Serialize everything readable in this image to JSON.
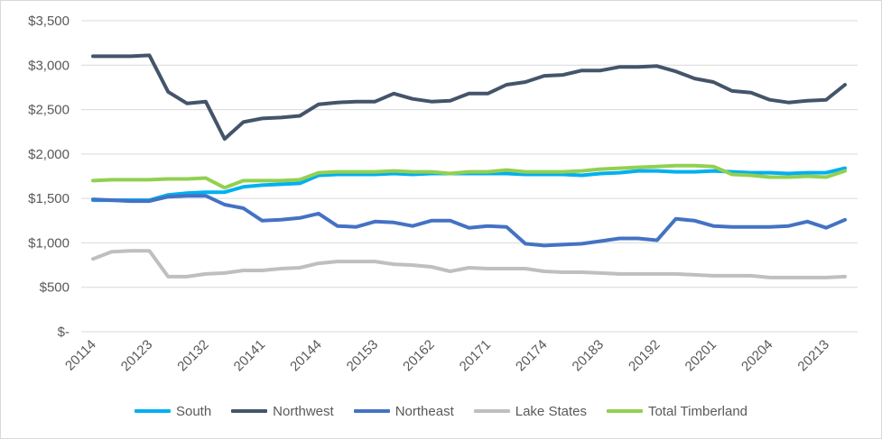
{
  "chart_data": {
    "type": "line",
    "title": "",
    "xlabel": "",
    "ylabel": "",
    "ylim": [
      0,
      3500
    ],
    "y_ticks": [
      {
        "value": 0,
        "label": "$-"
      },
      {
        "value": 500,
        "label": "$500"
      },
      {
        "value": 1000,
        "label": "$1,000"
      },
      {
        "value": 1500,
        "label": "$1,500"
      },
      {
        "value": 2000,
        "label": "$2,000"
      },
      {
        "value": 2500,
        "label": "$2,500"
      },
      {
        "value": 3000,
        "label": "$3,000"
      },
      {
        "value": 3500,
        "label": "$3,500"
      }
    ],
    "grid": "horizontal",
    "legend_position": "bottom",
    "x": [
      "20114",
      "20121",
      "20122",
      "20123",
      "20124",
      "20131",
      "20132",
      "20133",
      "20134",
      "20141",
      "20142",
      "20143",
      "20144",
      "20151",
      "20152",
      "20153",
      "20154",
      "20161",
      "20162",
      "20163",
      "20164",
      "20171",
      "20172",
      "20173",
      "20174",
      "20181",
      "20182",
      "20183",
      "20184",
      "20191",
      "20192",
      "20193",
      "20194",
      "20201",
      "20202",
      "20203",
      "20204",
      "20211",
      "20212",
      "20213",
      "20214"
    ],
    "x_tick_labels": [
      "20114",
      "20123",
      "20132",
      "20141",
      "20144",
      "20153",
      "20162",
      "20171",
      "20174",
      "20183",
      "20192",
      "20201",
      "20204",
      "20213"
    ],
    "series": [
      {
        "name": "South",
        "color": "#00b0f0",
        "values": [
          1480,
          1480,
          1480,
          1480,
          1540,
          1560,
          1570,
          1570,
          1630,
          1650,
          1660,
          1670,
          1760,
          1770,
          1770,
          1770,
          1780,
          1770,
          1780,
          1780,
          1780,
          1780,
          1780,
          1770,
          1770,
          1770,
          1760,
          1780,
          1790,
          1810,
          1810,
          1800,
          1800,
          1810,
          1800,
          1790,
          1790,
          1780,
          1790,
          1790,
          1840
        ]
      },
      {
        "name": "Northwest",
        "color": "#44546a",
        "values": [
          3100,
          3100,
          3100,
          3110,
          2700,
          2570,
          2590,
          2170,
          2360,
          2400,
          2410,
          2430,
          2560,
          2580,
          2590,
          2590,
          2680,
          2620,
          2590,
          2600,
          2680,
          2680,
          2780,
          2810,
          2880,
          2890,
          2940,
          2940,
          2980,
          2980,
          2990,
          2930,
          2850,
          2810,
          2710,
          2690,
          2610,
          2580,
          2600,
          2610,
          2780
        ]
      },
      {
        "name": "Northeast",
        "color": "#4472c4",
        "values": [
          1490,
          1480,
          1470,
          1470,
          1520,
          1530,
          1530,
          1430,
          1390,
          1250,
          1260,
          1280,
          1330,
          1190,
          1180,
          1240,
          1230,
          1190,
          1250,
          1250,
          1170,
          1190,
          1180,
          990,
          970,
          980,
          990,
          1020,
          1050,
          1050,
          1030,
          1270,
          1250,
          1190,
          1180,
          1180,
          1180,
          1190,
          1240,
          1170,
          1260
        ]
      },
      {
        "name": "Lake States",
        "color": "#bfbfbf",
        "values": [
          820,
          900,
          910,
          910,
          620,
          620,
          650,
          660,
          690,
          690,
          710,
          720,
          770,
          790,
          790,
          790,
          760,
          750,
          730,
          680,
          720,
          710,
          710,
          710,
          680,
          670,
          670,
          660,
          650,
          650,
          650,
          650,
          640,
          630,
          630,
          630,
          610,
          610,
          610,
          610,
          620
        ]
      },
      {
        "name": "Total Timberland",
        "color": "#92d050",
        "values": [
          1700,
          1710,
          1710,
          1710,
          1720,
          1720,
          1730,
          1620,
          1700,
          1700,
          1700,
          1710,
          1790,
          1800,
          1800,
          1800,
          1810,
          1800,
          1800,
          1780,
          1800,
          1800,
          1820,
          1800,
          1800,
          1800,
          1810,
          1830,
          1840,
          1850,
          1860,
          1870,
          1870,
          1860,
          1770,
          1760,
          1740,
          1740,
          1750,
          1740,
          1810
        ]
      }
    ]
  }
}
